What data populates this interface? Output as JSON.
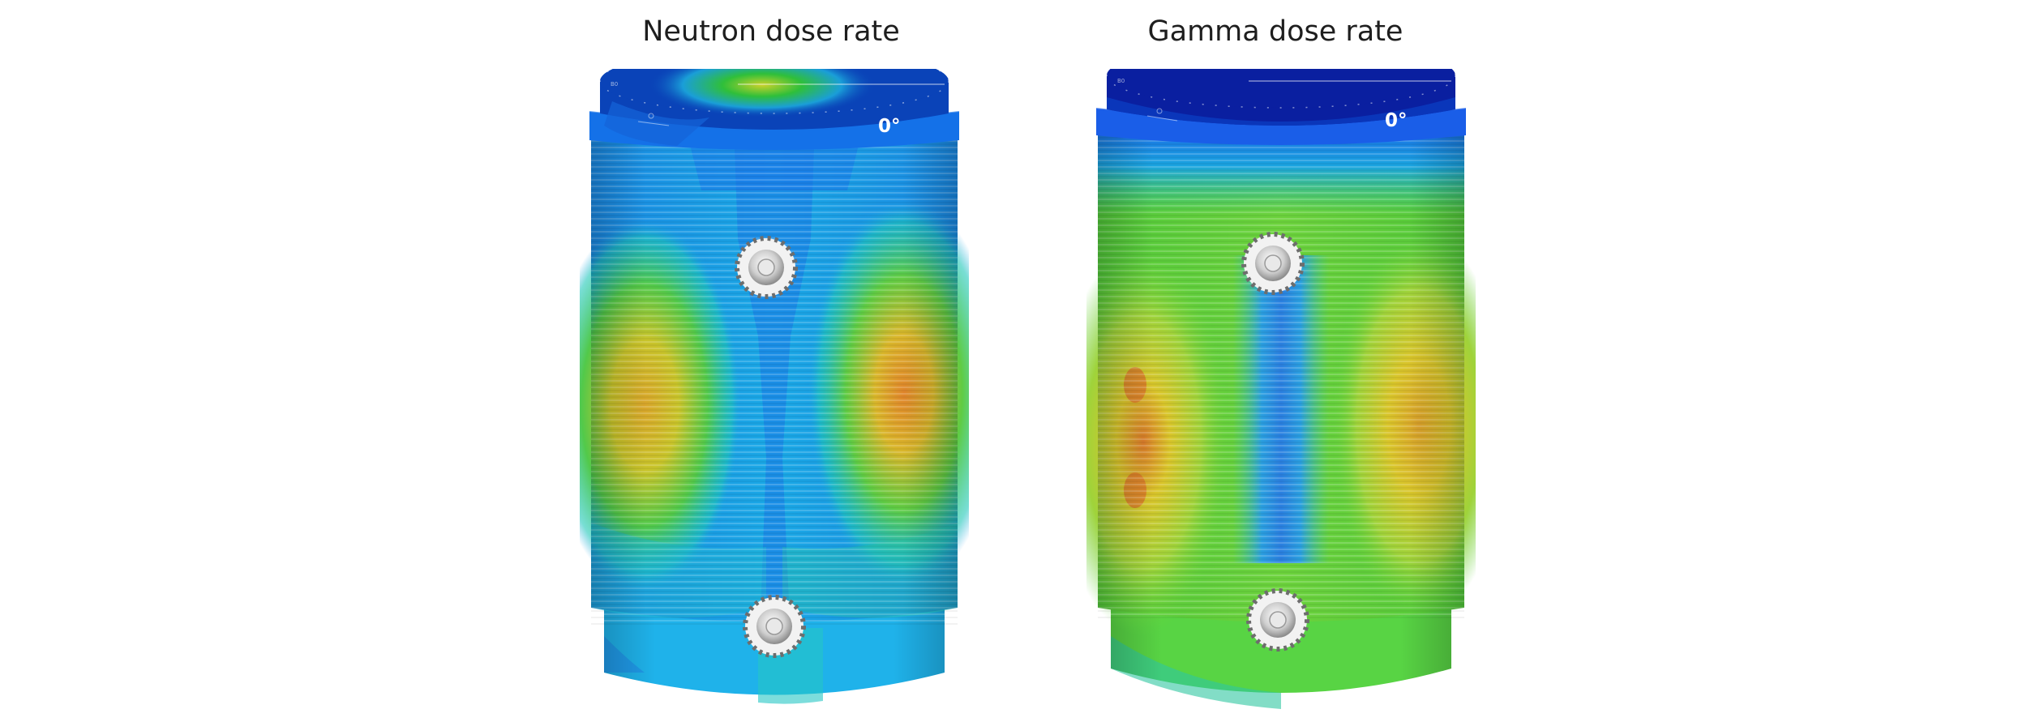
{
  "figure": {
    "panels": [
      {
        "title": "Neutron dose rate",
        "angle_label": "0°",
        "quantity": "neutron",
        "colors": {
          "lid_dark": "#0a43b8",
          "lid_hot": "#2fbf3a",
          "flange": "#1471e8",
          "body_base": "#1aa0ea",
          "hot_side": "#c8c42a",
          "peak": "#e0842a",
          "cool_band": "#1c78e6",
          "bottom_skirt": "#1fb2ea"
        }
      },
      {
        "title": "Gamma dose rate",
        "angle_label": "0°",
        "quantity": "gamma",
        "colors": {
          "lid_dark": "#0a1fa0",
          "lid_hot": "#0a1fa0",
          "flange": "#1a5ee8",
          "body_base": "#5ed23a",
          "hot_side": "#d9c52a",
          "peak": "#d97a2a",
          "cool_band": "#2a8fe0",
          "bottom_skirt": "#58d444"
        }
      }
    ]
  }
}
